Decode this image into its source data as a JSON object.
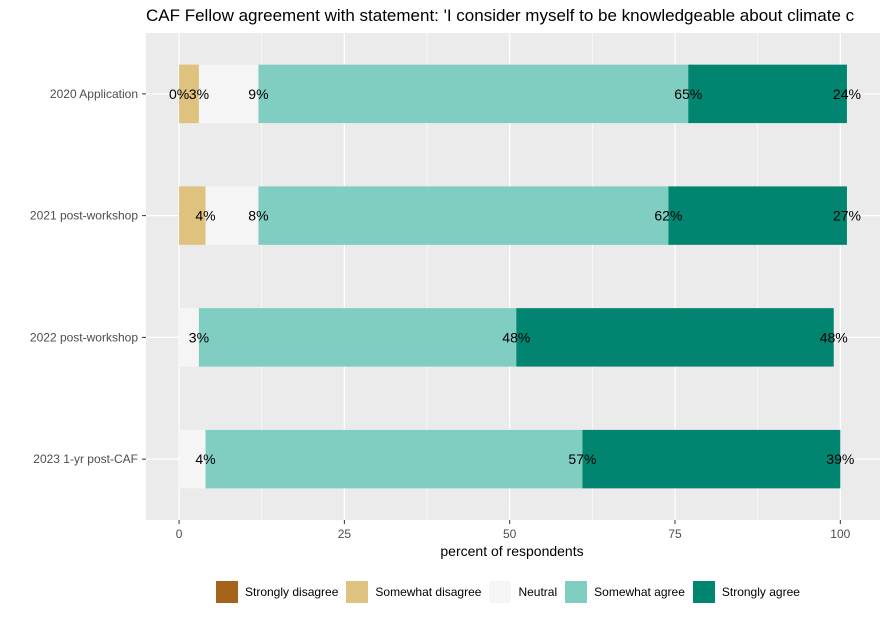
{
  "chart_data": {
    "type": "bar",
    "orientation": "horizontal",
    "stacked": true,
    "title": "CAF Fellow agreement with statement: 'I consider myself to be knowledgeable about climate c",
    "xlabel": "percent of respondents",
    "ylabel": "",
    "xlim": [
      -5,
      106
    ],
    "x_ticks": [
      0,
      25,
      50,
      75,
      100
    ],
    "grid": true,
    "legend_position": "bottom",
    "categories": [
      "2020 Application",
      "2021 post-workshop",
      "2022 post-workshop",
      "2023 1-yr post-CAF"
    ],
    "series": [
      {
        "name": "Strongly disagree",
        "color": "#a6611a",
        "values": [
          0,
          0,
          0,
          0
        ],
        "labels": [
          "0%",
          "",
          "",
          ""
        ]
      },
      {
        "name": "Somewhat disagree",
        "color": "#dfc27d",
        "values": [
          3,
          4,
          0,
          0
        ],
        "labels": [
          "3%",
          "4%",
          "",
          ""
        ]
      },
      {
        "name": "Neutral",
        "color": "#f5f5f5",
        "values": [
          9,
          8,
          3,
          4
        ],
        "labels": [
          "9%",
          "8%",
          "3%",
          "4%"
        ]
      },
      {
        "name": "Somewhat agree",
        "color": "#80cdc1",
        "values": [
          65,
          62,
          48,
          57
        ],
        "labels": [
          "65%",
          "62%",
          "48%",
          "57%"
        ]
      },
      {
        "name": "Strongly agree",
        "color": "#018571",
        "values": [
          24,
          27,
          48,
          39
        ],
        "labels": [
          "24%",
          "27%",
          "48%",
          "39%"
        ]
      }
    ]
  }
}
